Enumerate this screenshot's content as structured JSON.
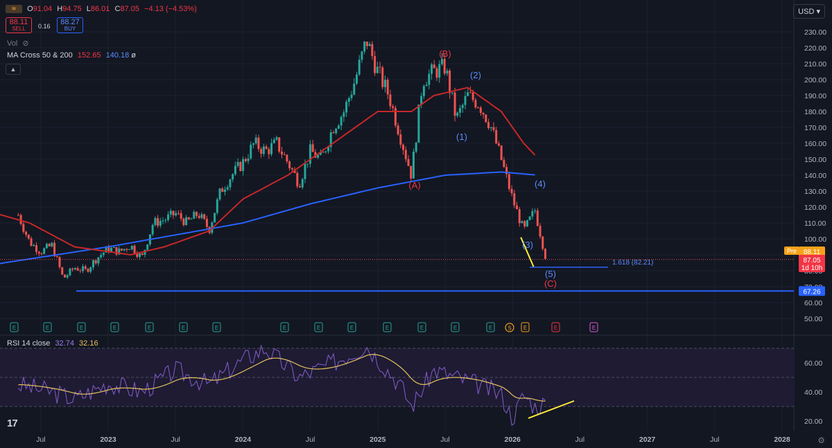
{
  "header": {
    "open_label": "O",
    "open": "91.04",
    "high_label": "H",
    "high": "94.75",
    "low_label": "L",
    "low": "86.01",
    "close_label": "C",
    "close": "87.05",
    "change": "−4.13 (−4.53%)"
  },
  "trade": {
    "sell_price": "88.11",
    "sell_label": "SELL",
    "spread": "0.16",
    "buy_price": "88.27",
    "buy_label": "BUY"
  },
  "vol_label": "Vol",
  "ma_legend": {
    "label": "MA Cross 50 & 200",
    "ma50": "152.65",
    "ma200": "140.18",
    "symbol": "ø"
  },
  "currency": "USD",
  "rsi_legend": {
    "label": "RSI 14 close",
    "rsi": "32.74",
    "ma": "32.16"
  },
  "colors": {
    "up": "#26a69a",
    "down": "#ef5350",
    "ma50": "#c62828",
    "ma200": "#2962ff",
    "wave_blue": "#5b8cff",
    "wave_red": "#f23645",
    "rsi": "#7e57c2",
    "rsi_ma": "#e6c35c",
    "highlight_yellow": "#ffeb3b",
    "background": "#131722"
  },
  "chart_data": {
    "type": "candlestick",
    "price_axis": {
      "min": 50,
      "max": 230,
      "ticks": [
        230,
        220,
        210,
        200,
        190,
        180,
        170,
        160,
        150,
        140,
        130,
        120,
        110,
        100,
        90,
        80,
        70,
        60,
        50
      ]
    },
    "time_axis_labels": [
      "Jul",
      "2023",
      "Jul",
      "2024",
      "Jul",
      "2025",
      "Jul",
      "2026",
      "Jul",
      "2027",
      "Jul",
      "2028"
    ],
    "price_anchors": [
      {
        "t": "2022-05",
        "p": 115
      },
      {
        "t": "2022-06",
        "p": 98
      },
      {
        "t": "2022-07",
        "p": 92
      },
      {
        "t": "2022-08",
        "p": 96
      },
      {
        "t": "2022-09",
        "p": 75
      },
      {
        "t": "2022-10",
        "p": 82
      },
      {
        "t": "2022-11",
        "p": 80
      },
      {
        "t": "2022-12",
        "p": 88
      },
      {
        "t": "2023-01",
        "p": 94
      },
      {
        "t": "2023-02",
        "p": 92
      },
      {
        "t": "2023-03",
        "p": 96
      },
      {
        "t": "2023-04",
        "p": 88
      },
      {
        "t": "2023-05",
        "p": 110
      },
      {
        "t": "2023-06",
        "p": 112
      },
      {
        "t": "2023-07",
        "p": 116
      },
      {
        "t": "2023-08",
        "p": 110
      },
      {
        "t": "2023-09",
        "p": 116
      },
      {
        "t": "2023-10",
        "p": 106
      },
      {
        "t": "2023-11",
        "p": 130
      },
      {
        "t": "2023-12",
        "p": 140
      },
      {
        "t": "2024-01",
        "p": 148
      },
      {
        "t": "2024-02",
        "p": 160
      },
      {
        "t": "2024-03",
        "p": 155
      },
      {
        "t": "2024-04",
        "p": 160
      },
      {
        "t": "2024-05",
        "p": 148
      },
      {
        "t": "2024-06",
        "p": 135
      },
      {
        "t": "2024-07",
        "p": 155
      },
      {
        "t": "2024-08",
        "p": 150
      },
      {
        "t": "2024-09",
        "p": 170
      },
      {
        "t": "2024-10",
        "p": 180
      },
      {
        "t": "2024-11",
        "p": 200
      },
      {
        "t": "2024-12",
        "p": 225
      },
      {
        "t": "2025-01",
        "p": 205
      },
      {
        "t": "2025-02",
        "p": 190
      },
      {
        "t": "2025-03",
        "p": 165
      },
      {
        "t": "2025-04",
        "p": 140
      },
      {
        "t": "2025-05",
        "p": 200
      },
      {
        "t": "2025-06",
        "p": 205
      },
      {
        "t": "2025-07",
        "p": 208
      },
      {
        "t": "2025-08",
        "p": 175
      },
      {
        "t": "2025-09",
        "p": 190
      },
      {
        "t": "2025-10",
        "p": 185
      },
      {
        "t": "2025-11",
        "p": 172
      },
      {
        "t": "2025-12",
        "p": 150
      },
      {
        "t": "2026-01",
        "p": 125
      },
      {
        "t": "2026-02",
        "p": 105
      },
      {
        "t": "2026-03",
        "p": 118
      },
      {
        "t": "2026-04",
        "p": 87
      }
    ],
    "ma50": [
      {
        "t": "2022-01",
        "p": 120
      },
      {
        "t": "2022-06",
        "p": 110
      },
      {
        "t": "2022-10",
        "p": 95
      },
      {
        "t": "2023-03",
        "p": 90
      },
      {
        "t": "2023-06",
        "p": 95
      },
      {
        "t": "2023-10",
        "p": 105
      },
      {
        "t": "2024-01",
        "p": 125
      },
      {
        "t": "2024-05",
        "p": 140
      },
      {
        "t": "2024-09",
        "p": 160
      },
      {
        "t": "2025-01",
        "p": 180
      },
      {
        "t": "2025-04",
        "p": 180
      },
      {
        "t": "2025-06",
        "p": 190
      },
      {
        "t": "2025-09",
        "p": 195
      },
      {
        "t": "2025-12",
        "p": 180
      },
      {
        "t": "2026-02",
        "p": 160
      },
      {
        "t": "2026-03",
        "p": 152.65
      }
    ],
    "ma200": [
      {
        "t": "2022-01",
        "p": 82
      },
      {
        "t": "2023-01",
        "p": 95
      },
      {
        "t": "2024-01",
        "p": 110
      },
      {
        "t": "2024-07",
        "p": 122
      },
      {
        "t": "2025-01",
        "p": 132
      },
      {
        "t": "2025-07",
        "p": 140
      },
      {
        "t": "2025-12",
        "p": 142
      },
      {
        "t": "2026-03",
        "p": 140.18
      }
    ],
    "support_level": 67.26,
    "fib_level": {
      "label": "1.618 (82.21)",
      "value": 82.21
    },
    "current_price": 87.05,
    "pre_price": {
      "label": "Pre",
      "value": "88.11"
    },
    "countdown": "1d 10h",
    "wave_labels": [
      {
        "text": "(A)",
        "color": "red"
      },
      {
        "text": "(B)",
        "color": "red"
      },
      {
        "text": "(C)",
        "color": "red"
      },
      {
        "text": "(1)",
        "color": "blue"
      },
      {
        "text": "(2)",
        "color": "blue"
      },
      {
        "text": "(3)",
        "color": "blue"
      },
      {
        "text": "(4)",
        "color": "blue"
      },
      {
        "text": "(5)",
        "color": "blue"
      }
    ],
    "earnings_marker": "E",
    "dividend_marker": "S",
    "rsi": {
      "axis_ticks": [
        60,
        40,
        20
      ],
      "upper_band": 70,
      "mid_band": 50,
      "lower_band": 30,
      "current": 32.74,
      "ma": 32.16,
      "anchors": [
        {
          "t": "2022-05",
          "v": 45
        },
        {
          "t": "2022-08",
          "v": 40
        },
        {
          "t": "2022-10",
          "v": 35
        },
        {
          "t": "2023-01",
          "v": 46
        },
        {
          "t": "2023-04",
          "v": 40
        },
        {
          "t": "2023-07",
          "v": 55
        },
        {
          "t": "2023-10",
          "v": 45
        },
        {
          "t": "2024-01",
          "v": 62
        },
        {
          "t": "2024-03",
          "v": 70
        },
        {
          "t": "2024-06",
          "v": 50
        },
        {
          "t": "2024-09",
          "v": 60
        },
        {
          "t": "2024-12",
          "v": 72
        },
        {
          "t": "2025-03",
          "v": 45
        },
        {
          "t": "2025-04",
          "v": 30
        },
        {
          "t": "2025-06",
          "v": 55
        },
        {
          "t": "2025-08",
          "v": 50
        },
        {
          "t": "2025-10",
          "v": 45
        },
        {
          "t": "2025-12",
          "v": 38
        },
        {
          "t": "2026-01",
          "v": 22
        },
        {
          "t": "2026-02",
          "v": 38
        },
        {
          "t": "2026-03",
          "v": 30
        },
        {
          "t": "2026-04",
          "v": 33
        }
      ]
    }
  }
}
